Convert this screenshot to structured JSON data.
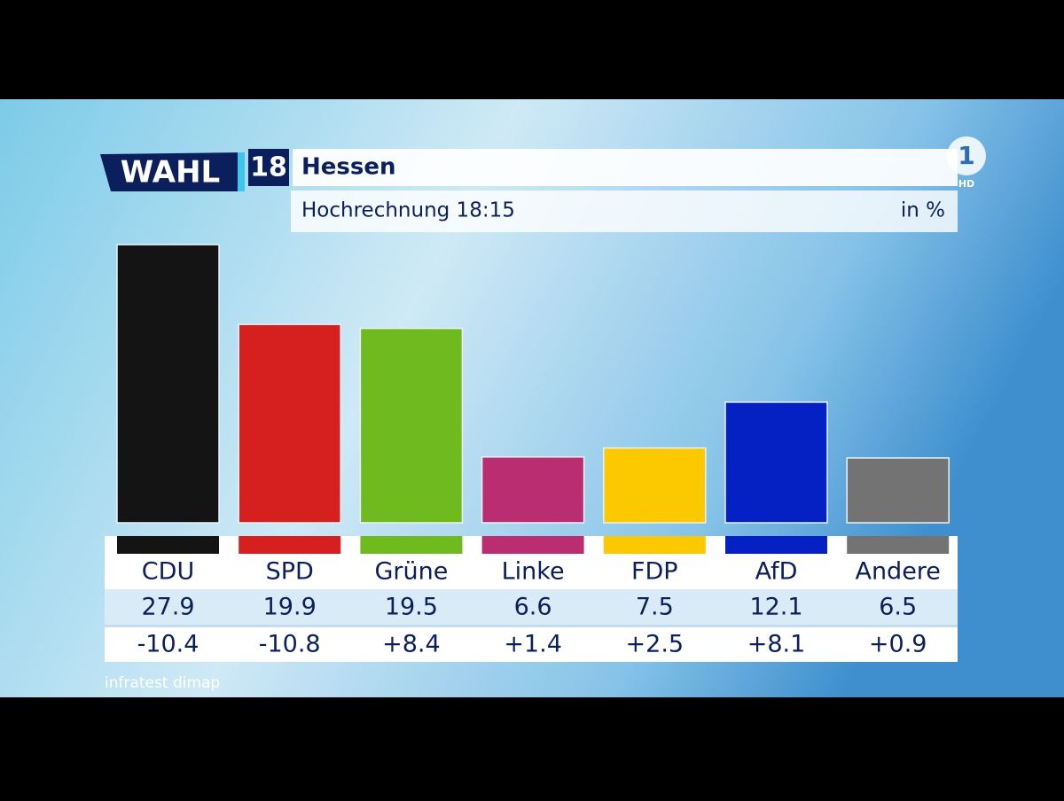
{
  "chart_data": {
    "type": "bar",
    "logo": "WAHL",
    "logo_year": "18",
    "title": "Hessen",
    "subtitle": "Hochrechnung 18:15",
    "unit": "in %",
    "channel": "1",
    "channel_badge": "HD",
    "source": "infratest dimap",
    "categories": [
      "CDU",
      "SPD",
      "Grüne",
      "Linke",
      "FDP",
      "AfD",
      "Andere"
    ],
    "values": [
      27.9,
      19.9,
      19.5,
      6.6,
      7.5,
      12.1,
      6.5
    ],
    "colors": [
      "#141414",
      "#d6201f",
      "#6fba1e",
      "#bb2d71",
      "#fcc800",
      "#0521c4",
      "#737373"
    ],
    "changes": [
      -10.4,
      -10.8,
      8.4,
      1.4,
      2.5,
      8.1,
      0.9
    ],
    "change_labels": [
      "-10.4",
      "-10.8",
      "+8.4",
      "+1.4",
      "+2.5",
      "+8.1",
      "+0.9"
    ]
  }
}
